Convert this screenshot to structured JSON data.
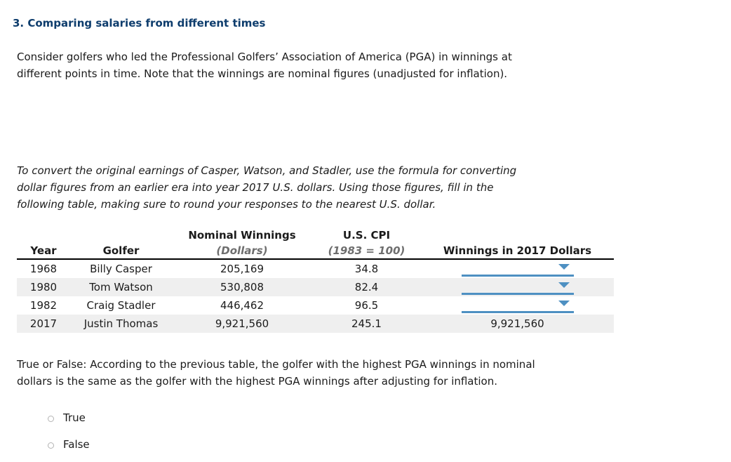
{
  "page": {
    "title": "3. Comparing salaries from different times",
    "intro_lines": [
      "Consider golfers who led the Professional Golfers’ Association of America (PGA) in winnings at",
      "different points in time. Note that the winnings are nominal figures (unadjusted for inflation)."
    ],
    "instruction_lines": [
      "To convert the original earnings of Casper, Watson, and Stadler, use the formula for converting",
      "dollar figures from an earlier era into year 2017 U.S. dollars. Using those figures, fill in the",
      "following table, making sure to round your responses to the nearest U.S. dollar."
    ],
    "question_lines": [
      "True or False: According to the previous table, the golfer with the highest PGA winnings in nominal",
      "dollars is the same as the golfer with the highest PGA winnings after adjusting for inflation."
    ]
  },
  "table": {
    "headers": [
      {
        "line1": "",
        "line2": "Year"
      },
      {
        "line1": "",
        "line2": "Golfer"
      },
      {
        "line1": "Nominal Winnings",
        "line2": "(Dollars)"
      },
      {
        "line1": "U.S. CPI",
        "line2": "(1983 = 100)"
      },
      {
        "line1": "",
        "line2": "Winnings in 2017 Dollars"
      }
    ],
    "rows": [
      {
        "year": "1968",
        "golfer": "Billy Casper",
        "nominal": "205,169",
        "cpi": "34.8",
        "winnings2017": ""
      },
      {
        "year": "1980",
        "golfer": "Tom Watson",
        "nominal": "530,808",
        "cpi": "82.4",
        "winnings2017": ""
      },
      {
        "year": "1982",
        "golfer": "Craig Stadler",
        "nominal": "446,462",
        "cpi": "96.5",
        "winnings2017": ""
      },
      {
        "year": "2017",
        "golfer": "Justin Thomas",
        "nominal": "9,921,560",
        "cpi": "245.1",
        "winnings2017": "9,921,560"
      }
    ]
  },
  "options": [
    {
      "label": "True",
      "selected": false
    },
    {
      "label": "False",
      "selected": false
    }
  ],
  "colors": {
    "title_navy": "#0e3d6d",
    "dropdown_blue": "#4e90c2",
    "row_stripe": "#efefef",
    "subheader_gray": "#6e6e6e"
  }
}
